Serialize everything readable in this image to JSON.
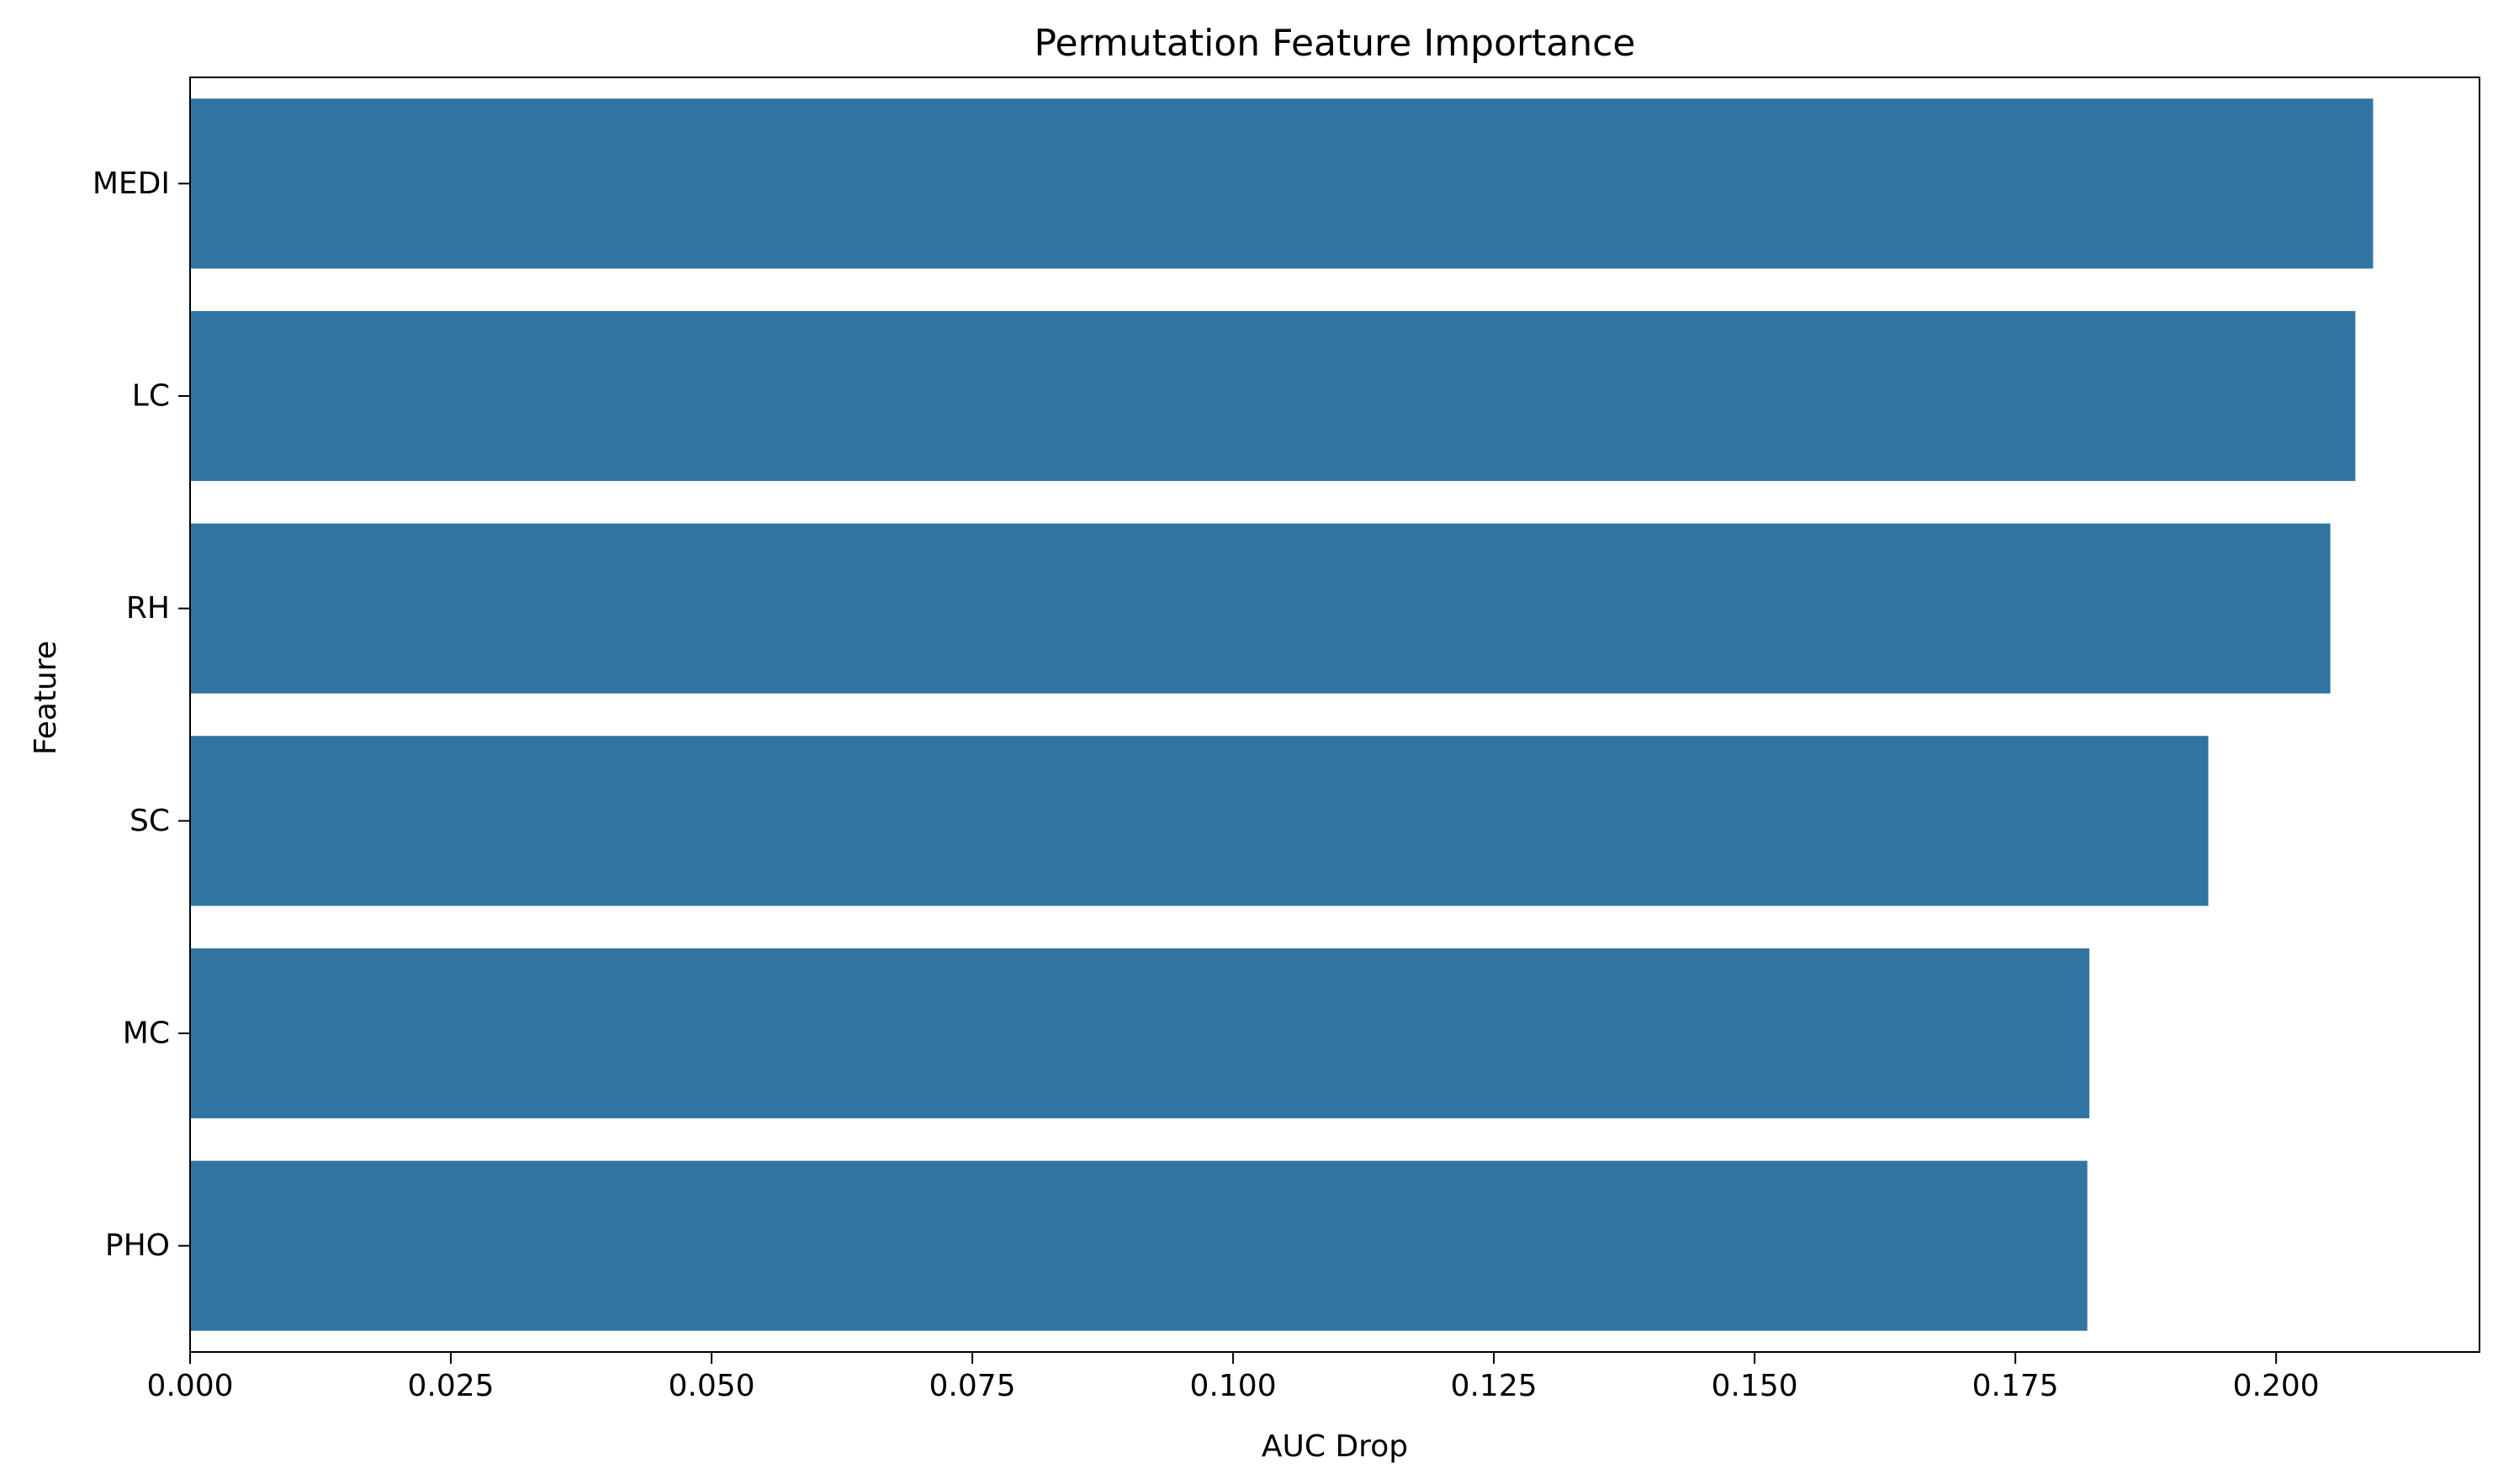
{
  "chart_data": {
    "type": "bar",
    "orientation": "horizontal",
    "title": "Permutation Feature Importance",
    "xlabel": "AUC Drop",
    "ylabel": "Feature",
    "categories": [
      "MEDI",
      "LC",
      "RH",
      "SC",
      "MC",
      "PHO"
    ],
    "values": [
      0.2093,
      0.2076,
      0.2052,
      0.1935,
      0.1821,
      0.1819
    ],
    "xlim": [
      0,
      0.2195
    ],
    "xticks": [
      0.0,
      0.025,
      0.05,
      0.075,
      0.1,
      0.125,
      0.15,
      0.175,
      0.2
    ],
    "xtick_labels": [
      "0.000",
      "0.025",
      "0.050",
      "0.075",
      "0.100",
      "0.125",
      "0.150",
      "0.175",
      "0.200"
    ],
    "bar_color": "#3274a1",
    "grid": false,
    "legend": "none"
  }
}
